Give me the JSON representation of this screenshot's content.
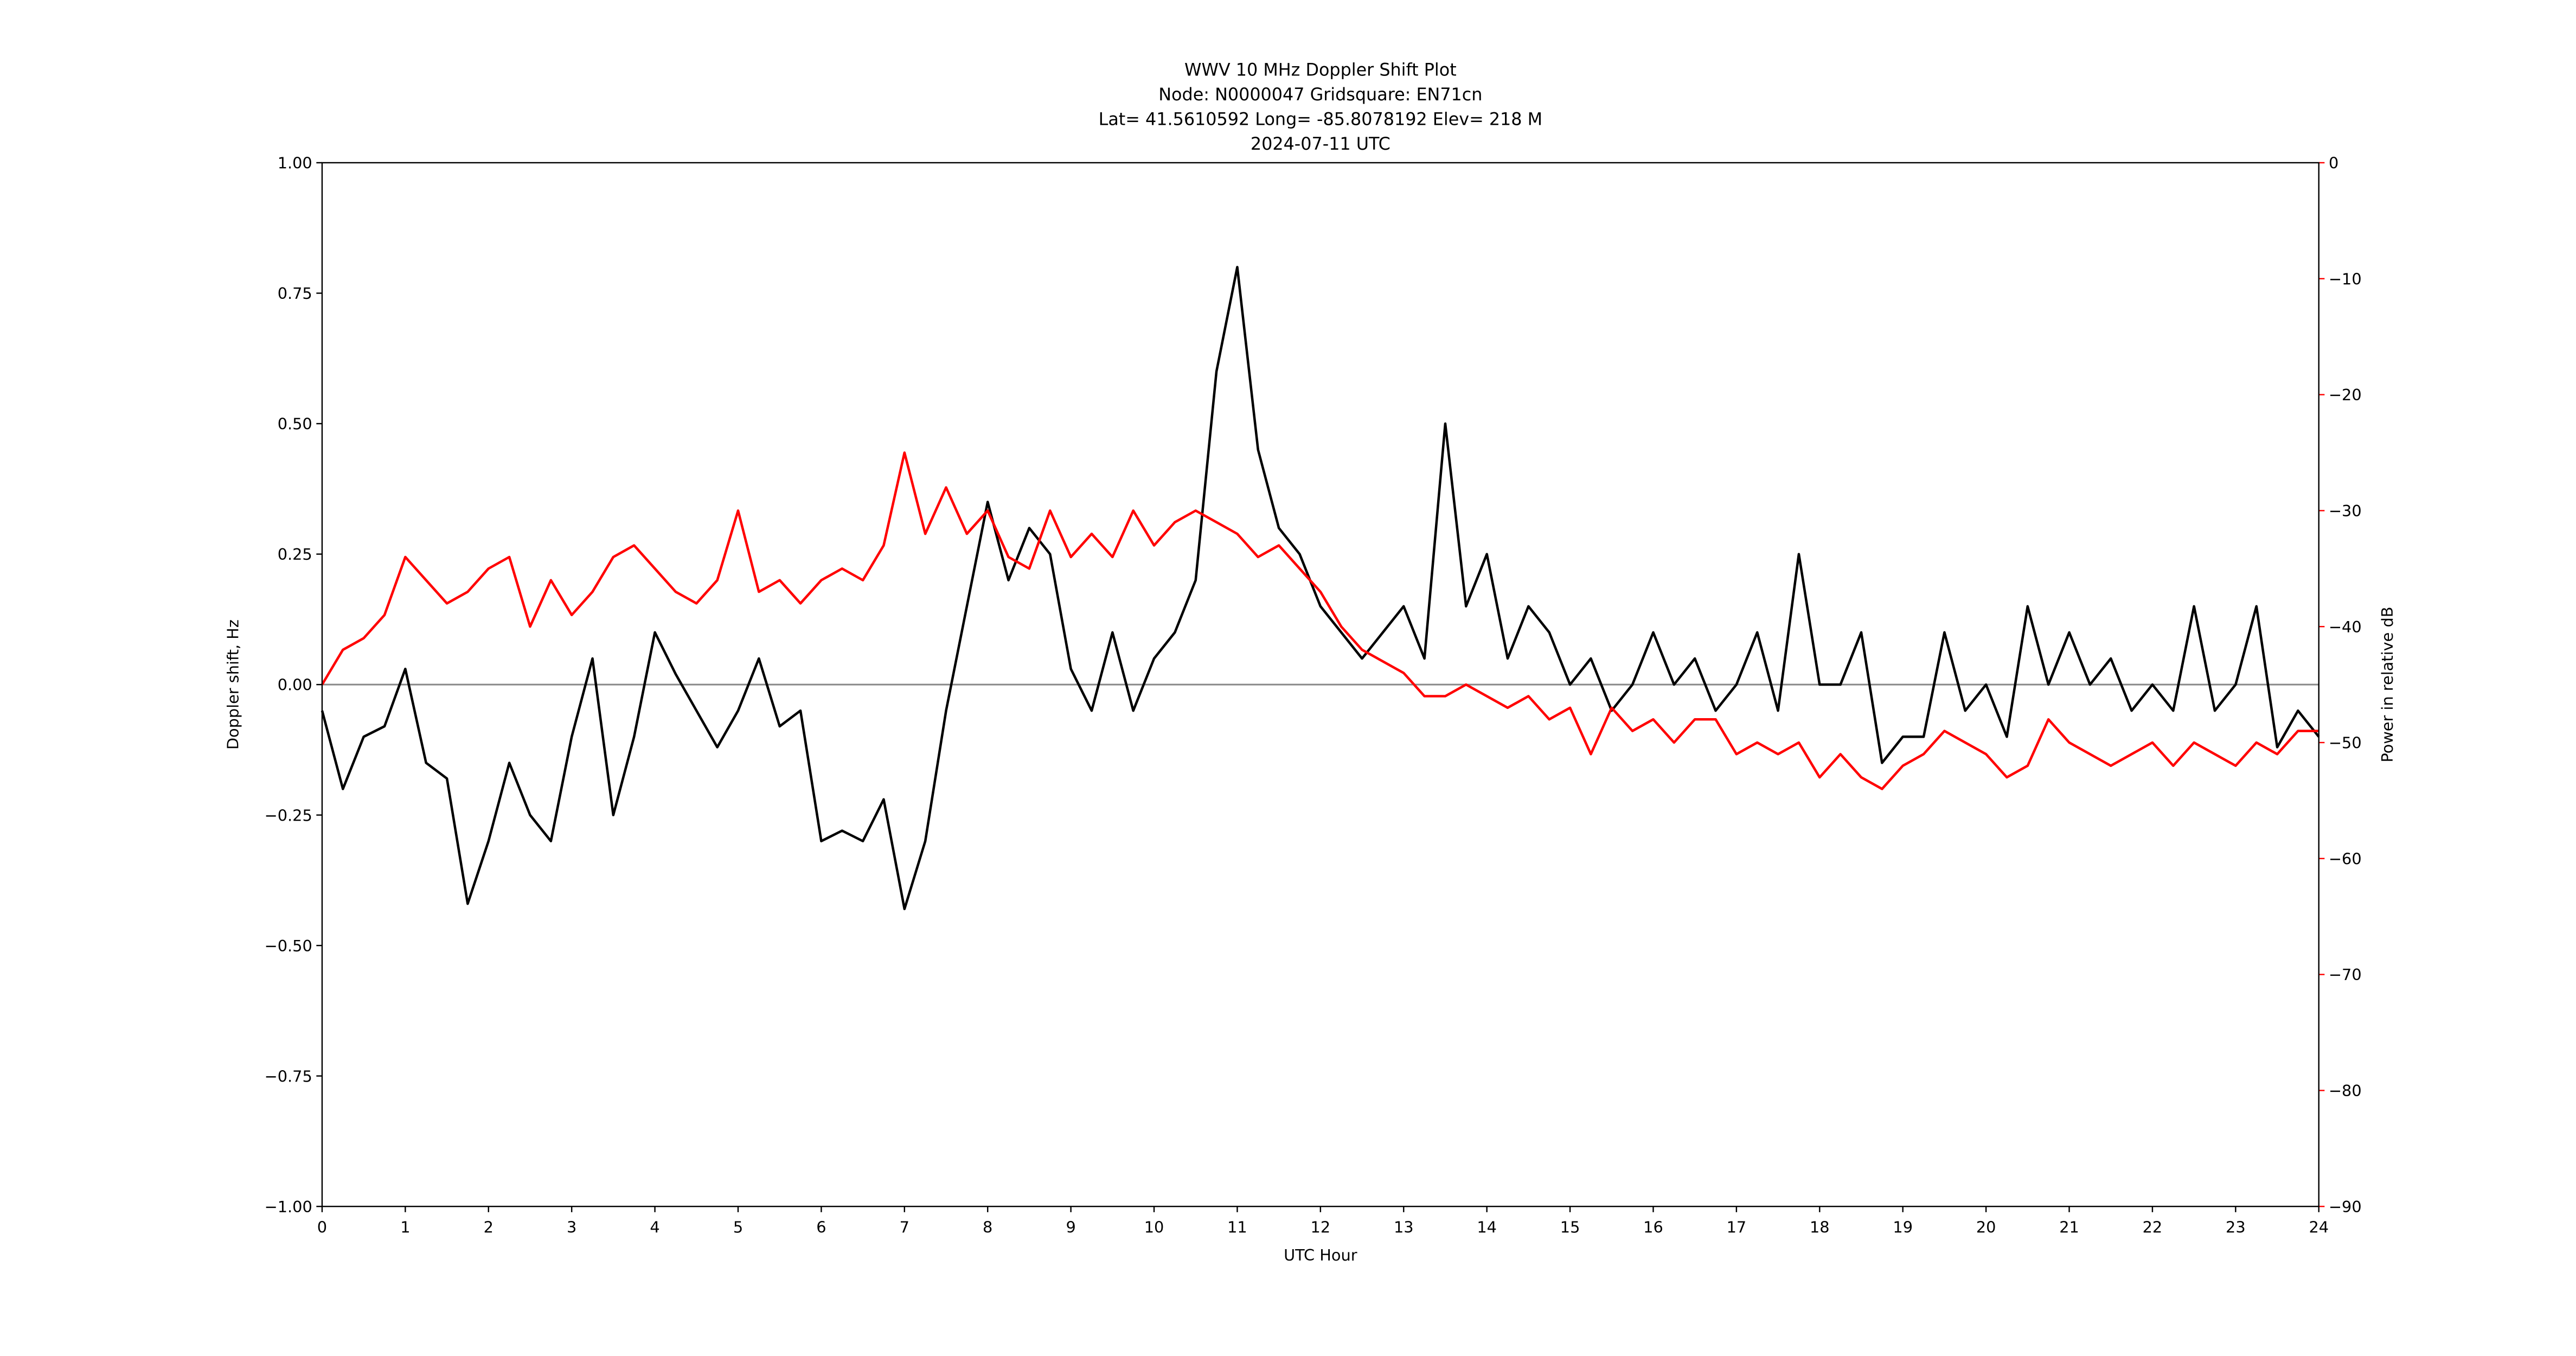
{
  "chart_data": {
    "type": "line",
    "title_lines": [
      "WWV 10 MHz Doppler Shift Plot",
      "Node:  N0000047     Gridsquare:  EN71cn",
      "Lat= 41.5610592    Long= -85.8078192    Elev= 218 M",
      "2024-07-11  UTC"
    ],
    "xlabel": "UTC Hour",
    "ylabel": "Doppler shift, Hz",
    "y2label": "Power in relative dB",
    "y2color": "#ff0000",
    "x": [
      0,
      0.25,
      0.5,
      0.75,
      1,
      1.25,
      1.5,
      1.75,
      2,
      2.25,
      2.5,
      2.75,
      3,
      3.25,
      3.5,
      3.75,
      4,
      4.25,
      4.5,
      4.75,
      5,
      5.25,
      5.5,
      5.75,
      6,
      6.25,
      6.5,
      6.75,
      7,
      7.25,
      7.5,
      7.75,
      8,
      8.25,
      8.5,
      8.75,
      9,
      9.25,
      9.5,
      9.75,
      10,
      10.25,
      10.5,
      10.75,
      11,
      11.25,
      11.5,
      11.75,
      12,
      12.25,
      12.5,
      12.75,
      13,
      13.25,
      13.5,
      13.75,
      14,
      14.25,
      14.5,
      14.75,
      15,
      15.25,
      15.5,
      15.75,
      16,
      16.25,
      16.5,
      16.75,
      17,
      17.25,
      17.5,
      17.75,
      18,
      18.25,
      18.5,
      18.75,
      19,
      19.25,
      19.5,
      19.75,
      20,
      20.25,
      20.5,
      20.75,
      21,
      21.25,
      21.5,
      21.75,
      22,
      22.25,
      22.5,
      22.75,
      23,
      23.25,
      23.5,
      23.75,
      24
    ],
    "series": [
      {
        "color": "#000000",
        "values": [
          -0.05,
          -0.2,
          -0.1,
          -0.08,
          0.03,
          -0.15,
          -0.18,
          -0.42,
          -0.3,
          -0.15,
          -0.25,
          -0.3,
          -0.1,
          0.05,
          -0.25,
          -0.1,
          0.1,
          0.02,
          -0.05,
          -0.12,
          -0.05,
          0.05,
          -0.08,
          -0.05,
          -0.3,
          -0.28,
          -0.3,
          -0.22,
          -0.43,
          -0.3,
          -0.05,
          0.15,
          0.35,
          0.2,
          0.3,
          0.25,
          0.03,
          -0.05,
          0.1,
          -0.05,
          0.05,
          0.1,
          0.2,
          0.6,
          0.8,
          0.45,
          0.3,
          0.25,
          0.15,
          0.1,
          0.05,
          0.1,
          0.15,
          0.05,
          0.5,
          0.15,
          0.25,
          0.05,
          0.15,
          0.1,
          0.0,
          0.05,
          -0.05,
          0.0,
          0.1,
          0.0,
          0.05,
          -0.05,
          0.0,
          0.1,
          -0.05,
          0.25,
          0.0,
          0.0,
          0.1,
          -0.15,
          -0.1,
          -0.1,
          0.1,
          -0.05,
          0.0,
          -0.1,
          0.15,
          0.0,
          0.1,
          0.0,
          0.05,
          -0.05,
          0.0,
          -0.05,
          0.15,
          -0.05,
          0.0,
          0.15,
          -0.12,
          -0.05,
          -0.1
        ]
      },
      {
        "color": "#ff0000",
        "axis": "y2",
        "values": [
          -45,
          -42,
          -41,
          -39,
          -34,
          -36,
          -38,
          -37,
          -35,
          -34,
          -40,
          -36,
          -39,
          -37,
          -34,
          -33,
          -35,
          -37,
          -38,
          -36,
          -30,
          -37,
          -36,
          -38,
          -36,
          -35,
          -36,
          -33,
          -25,
          -32,
          -28,
          -32,
          -30,
          -34,
          -35,
          -30,
          -34,
          -32,
          -34,
          -30,
          -33,
          -31,
          -30,
          -31,
          -32,
          -34,
          -33,
          -35,
          -37,
          -40,
          -42,
          -43,
          -44,
          -46,
          -46,
          -45,
          -46,
          -47,
          -46,
          -48,
          -47,
          -51,
          -47,
          -49,
          -48,
          -50,
          -48,
          -48,
          -51,
          -50,
          -51,
          -50,
          -53,
          -51,
          -53,
          -54,
          -52,
          -51,
          -49,
          -50,
          -51,
          -53,
          -52,
          -48,
          -50,
          -51,
          -52,
          -51,
          -50,
          -52,
          -50,
          -51,
          -52,
          -50,
          -51,
          -49,
          -49
        ]
      }
    ],
    "xlim": [
      0,
      24
    ],
    "xticks": [
      0,
      1,
      2,
      3,
      4,
      5,
      6,
      7,
      8,
      9,
      10,
      11,
      12,
      13,
      14,
      15,
      16,
      17,
      18,
      19,
      20,
      21,
      22,
      23,
      24
    ],
    "ylim": [
      -1,
      1
    ],
    "yticks": [
      {
        "value": -1,
        "label": "−1.00"
      },
      {
        "value": -0.75,
        "label": "−0.75"
      },
      {
        "value": -0.5,
        "label": "−0.50"
      },
      {
        "value": -0.25,
        "label": "−0.25"
      },
      {
        "value": 0,
        "label": "0.00"
      },
      {
        "value": 0.25,
        "label": "0.25"
      },
      {
        "value": 0.5,
        "label": "0.50"
      },
      {
        "value": 0.75,
        "label": "0.75"
      },
      {
        "value": 1,
        "label": "1.00"
      }
    ],
    "y2lim": [
      -90,
      0
    ],
    "y2ticks": [
      {
        "value": -90,
        "label": "−90"
      },
      {
        "value": -80,
        "label": "−80"
      },
      {
        "value": -70,
        "label": "−70"
      },
      {
        "value": -60,
        "label": "−60"
      },
      {
        "value": -50,
        "label": "−50"
      },
      {
        "value": -40,
        "label": "−40"
      },
      {
        "value": -30,
        "label": "−30"
      },
      {
        "value": -20,
        "label": "−20"
      },
      {
        "value": -10,
        "label": "−10"
      },
      0
    ]
  }
}
